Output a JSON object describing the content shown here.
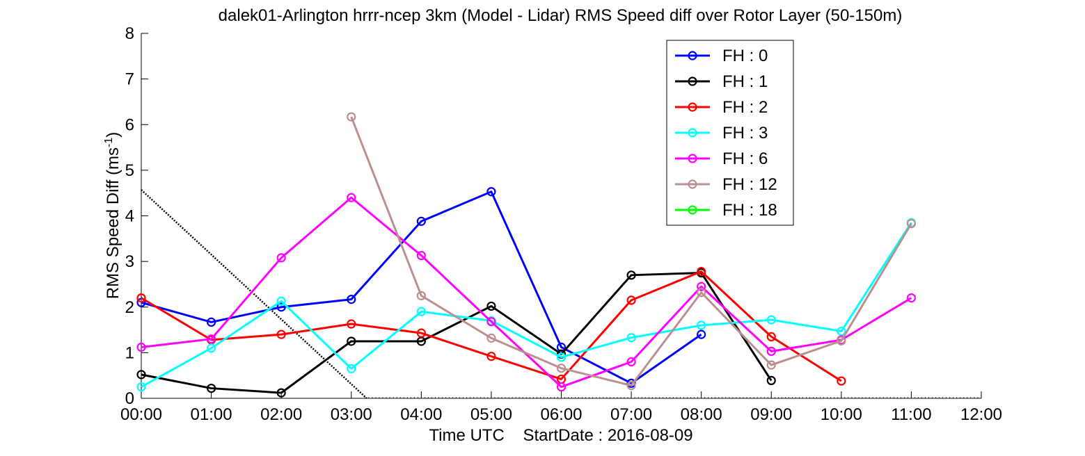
{
  "chart_data": {
    "type": "line",
    "title": "dalek01-Arlington hrrr-ncep 3km (Model - Lidar) RMS Speed diff over Rotor Layer (50-150m)",
    "xlabel": "Time UTC    StartDate : 2016-08-09",
    "ylabel": "RMS Speed Diff (ms",
    "ylabel_superscript": "-1",
    "ylabel_suffix": ")",
    "x_ticks": [
      "00:00",
      "01:00",
      "02:00",
      "03:00",
      "04:00",
      "05:00",
      "06:00",
      "07:00",
      "08:00",
      "09:00",
      "10:00",
      "11:00",
      "12:00"
    ],
    "y_ticks": [
      "0",
      "1",
      "2",
      "3",
      "4",
      "5",
      "6",
      "7",
      "8"
    ],
    "xlim": [
      0,
      12
    ],
    "ylim": [
      0,
      8
    ],
    "grid": false,
    "legend_position": "top-right",
    "series": [
      {
        "name": "FH : 0",
        "color": "#0000ff",
        "x": [
          0,
          1,
          2,
          3,
          4,
          5,
          6,
          7,
          8
        ],
        "values": [
          2.1,
          1.67,
          2.0,
          2.17,
          3.88,
          4.53,
          1.12,
          0.33,
          1.4
        ]
      },
      {
        "name": "FH : 1",
        "color": "#000000",
        "x": [
          0,
          1,
          2,
          3,
          4,
          5,
          6,
          7,
          8,
          9
        ],
        "values": [
          0.52,
          0.22,
          0.12,
          1.25,
          1.25,
          2.02,
          0.97,
          2.7,
          2.75,
          0.39
        ]
      },
      {
        "name": "FH : 2",
        "color": "#ff0000",
        "x": [
          0,
          1,
          2,
          3,
          4,
          5,
          6,
          7,
          8,
          9,
          10
        ],
        "values": [
          2.2,
          1.28,
          1.4,
          1.63,
          1.43,
          0.92,
          0.42,
          2.15,
          2.78,
          1.35,
          0.38
        ]
      },
      {
        "name": "FH : 3",
        "color": "#00ffff",
        "x": [
          0,
          1,
          2,
          3,
          4,
          5,
          6,
          7,
          8,
          9,
          10,
          11
        ],
        "values": [
          0.25,
          1.1,
          2.13,
          0.65,
          1.9,
          1.7,
          0.9,
          1.33,
          1.6,
          1.72,
          1.47,
          3.85
        ]
      },
      {
        "name": "FH : 6",
        "color": "#ff00ff",
        "x": [
          0,
          1,
          2,
          3,
          4,
          5,
          6,
          7,
          8,
          9,
          10,
          11
        ],
        "values": [
          1.12,
          1.3,
          3.08,
          4.4,
          3.13,
          1.68,
          0.25,
          0.8,
          2.45,
          1.03,
          1.28,
          2.2
        ]
      },
      {
        "name": "FH : 12",
        "color": "#bc8f8f",
        "x": [
          3,
          4,
          5,
          6,
          7,
          8,
          9,
          10,
          11
        ],
        "values": [
          6.17,
          2.25,
          1.32,
          0.66,
          0.28,
          2.32,
          0.73,
          1.26,
          3.83
        ]
      },
      {
        "name": "FH : 18",
        "color": "#00ff00",
        "x": [],
        "values": []
      }
    ],
    "reference_line": {
      "style": "dotted",
      "color": "#000000",
      "x": [
        0,
        3.22
      ],
      "values": [
        4.57,
        0
      ]
    }
  }
}
